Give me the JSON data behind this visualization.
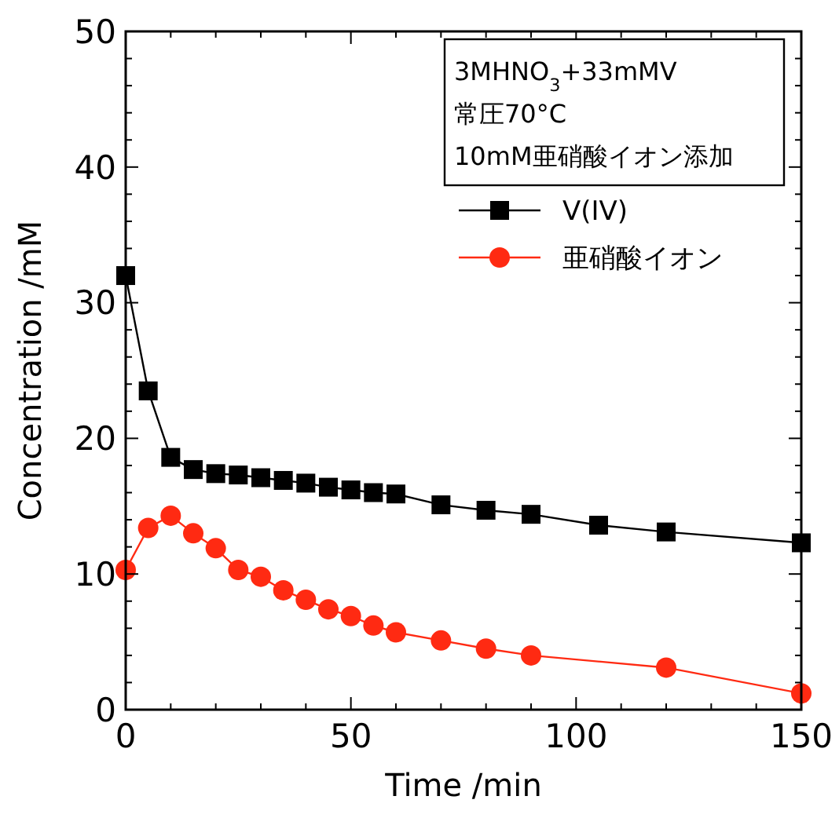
{
  "chart_data": {
    "type": "line",
    "xlabel": "Time /min",
    "ylabel": "Concentration /mM",
    "xlim": [
      0,
      150
    ],
    "xticks": [
      0,
      50,
      100,
      150
    ],
    "ylim": [
      0,
      50
    ],
    "yticks": [
      0,
      10,
      20,
      30,
      40,
      50
    ],
    "annotations": [
      "3MHNO$_{3}$+33mMV",
      "常圧70°C",
      "10mM亜硝酸イオン添加"
    ],
    "legend": "top right",
    "grid": false,
    "series": [
      {
        "name": "V(IV)",
        "color": "#000000",
        "marker": "square",
        "x": [
          0,
          5,
          10,
          15,
          20,
          25,
          30,
          35,
          40,
          45,
          50,
          55,
          60,
          70,
          80,
          90,
          105,
          120,
          150
        ],
        "values": [
          32,
          23.5,
          18.6,
          17.7,
          17.4,
          17.3,
          17.1,
          16.9,
          16.7,
          16.4,
          16.2,
          16.0,
          15.9,
          15.1,
          14.7,
          14.4,
          13.6,
          13.1,
          12.3
        ]
      },
      {
        "name": "亜硝酸イオン",
        "color": "#ff2a12",
        "marker": "circle",
        "x": [
          0,
          5,
          10,
          15,
          20,
          25,
          30,
          35,
          40,
          45,
          50,
          55,
          60,
          70,
          80,
          90,
          120,
          150
        ],
        "values": [
          10.3,
          13.4,
          14.3,
          13.0,
          11.9,
          10.3,
          9.8,
          8.8,
          8.1,
          7.4,
          6.9,
          6.2,
          5.7,
          5.1,
          4.5,
          4.0,
          3.1,
          1.2
        ]
      }
    ]
  }
}
